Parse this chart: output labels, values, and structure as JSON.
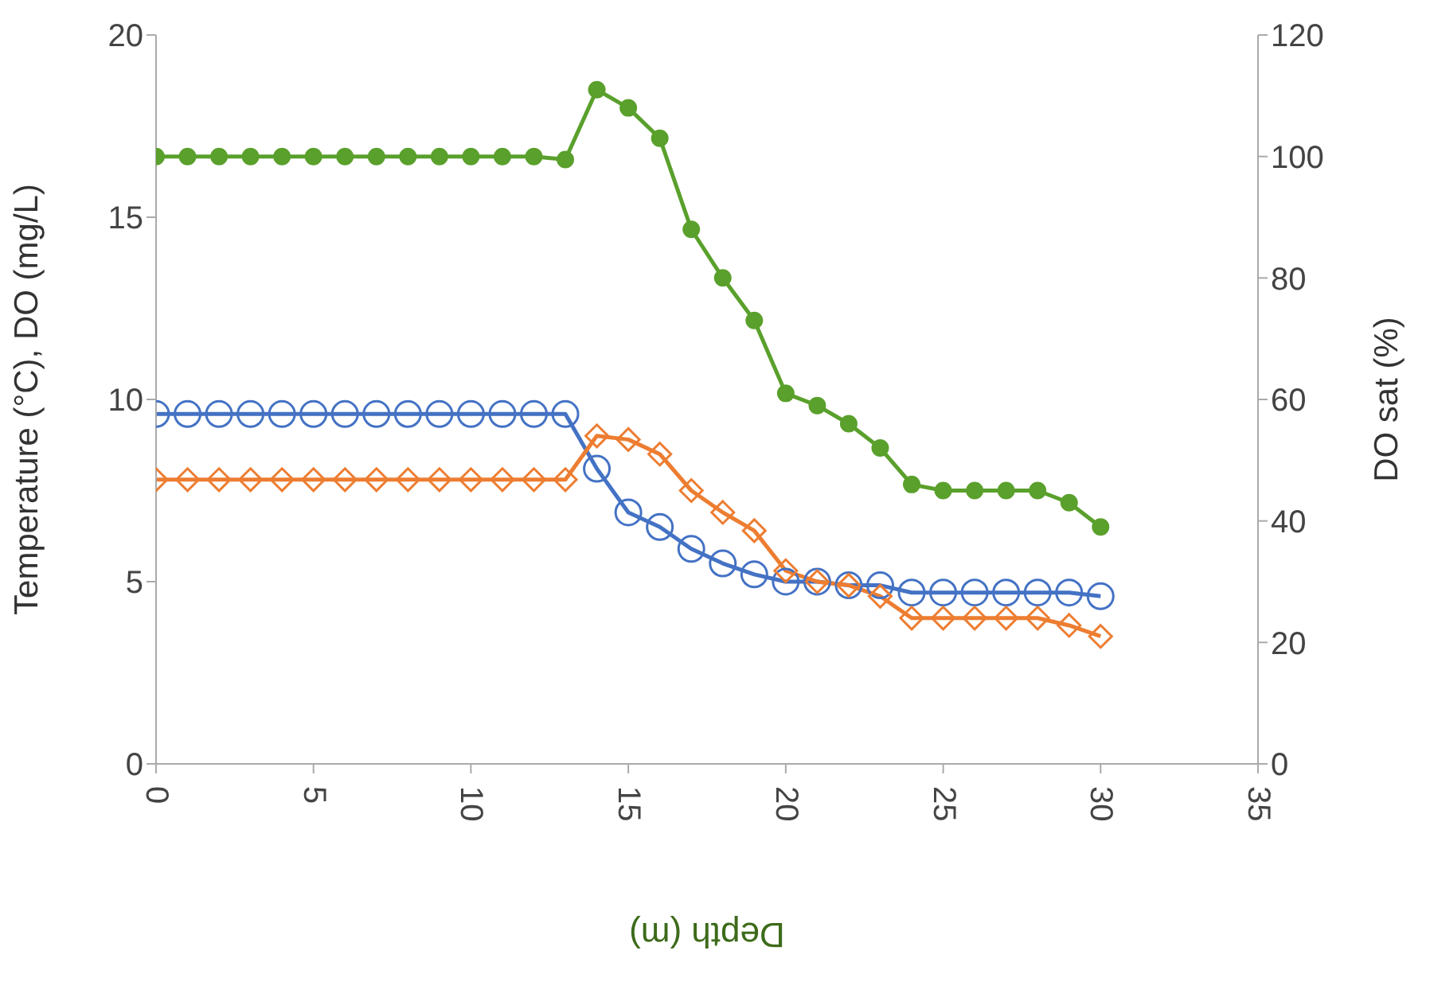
{
  "chart_data": {
    "type": "line",
    "xlabel": "Depth (m)",
    "ylabel": "Temperature (°C), DO (mg/L)",
    "y2label": "DO sat (%)",
    "x": [
      0,
      1,
      2,
      3,
      4,
      5,
      6,
      7,
      8,
      9,
      10,
      11,
      12,
      13,
      14,
      15,
      16,
      17,
      18,
      19,
      20,
      21,
      22,
      23,
      24,
      25,
      26,
      27,
      28,
      29,
      30
    ],
    "series": [
      {
        "color": "#4472c4",
        "marker": "circle",
        "values": [
          9.6,
          9.6,
          9.6,
          9.6,
          9.6,
          9.6,
          9.6,
          9.6,
          9.6,
          9.6,
          9.6,
          9.6,
          9.6,
          9.6,
          8.1,
          6.9,
          6.5,
          5.9,
          5.5,
          5.2,
          5.0,
          5.0,
          4.9,
          4.9,
          4.7,
          4.7,
          4.7,
          4.7,
          4.7,
          4.7,
          4.6
        ]
      },
      {
        "color": "#ed7d31",
        "marker": "diamond",
        "values": [
          7.8,
          7.8,
          7.8,
          7.8,
          7.8,
          7.8,
          7.8,
          7.8,
          7.8,
          7.8,
          7.8,
          7.8,
          7.8,
          7.8,
          9.0,
          8.9,
          8.5,
          7.5,
          6.9,
          6.4,
          5.3,
          5.0,
          4.9,
          4.6,
          4.0,
          4.0,
          4.0,
          4.0,
          4.0,
          3.8,
          3.5
        ]
      },
      {
        "color": "#5aa02c",
        "marker": "circle",
        "axis": "y2",
        "values": [
          100,
          100,
          100,
          100,
          100,
          100,
          100,
          100,
          100,
          100,
          100,
          100,
          100,
          99.5,
          111,
          108,
          103,
          88,
          80,
          73,
          61,
          59,
          56,
          52,
          46,
          45,
          45,
          45,
          45,
          43,
          39
        ]
      }
    ],
    "xlim": [
      0,
      35
    ],
    "xticks": [
      0,
      5,
      10,
      15,
      20,
      25,
      30,
      35
    ],
    "ylim": [
      0,
      20
    ],
    "yticks": [
      0,
      5,
      10,
      15,
      20
    ],
    "y2lim": [
      0,
      120
    ],
    "y2ticks": [
      0,
      20,
      40,
      60,
      80,
      100,
      120
    ]
  }
}
